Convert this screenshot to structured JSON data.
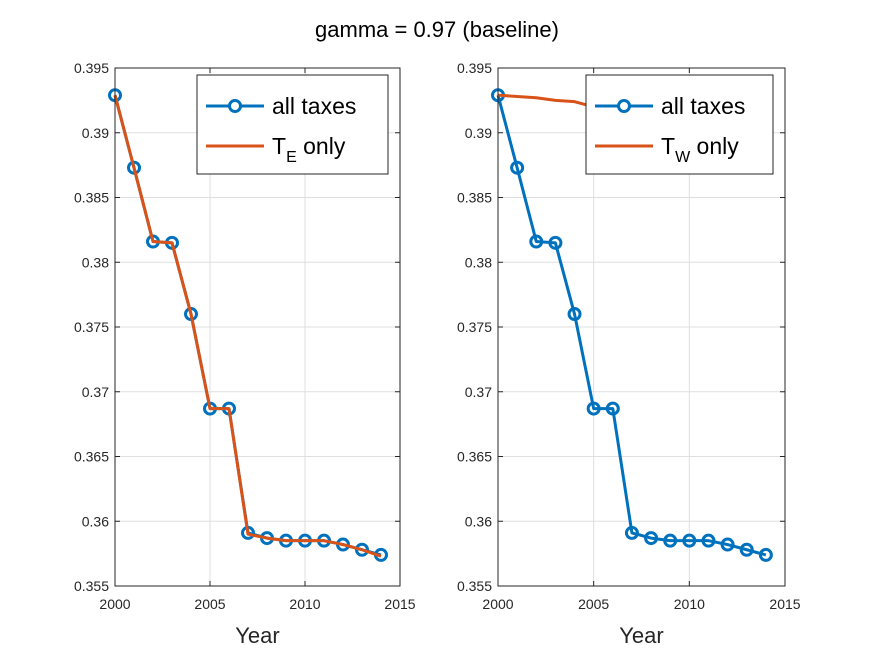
{
  "figure": {
    "title": "gamma = 0.97 (baseline)"
  },
  "colors": {
    "blue": "#0072BD",
    "orange": "#D95319",
    "grid": "#dfdfdf",
    "axis": "#262626"
  },
  "chart_data": [
    {
      "type": "line",
      "xlabel": "Year",
      "ylabel": "",
      "xlim": [
        2000,
        2015
      ],
      "ylim": [
        0.355,
        0.395
      ],
      "xticks": [
        2000,
        2005,
        2010,
        2015
      ],
      "xtick_labels": [
        "2000",
        "2005",
        "2010",
        "2015"
      ],
      "yticks": [
        0.355,
        0.36,
        0.365,
        0.37,
        0.375,
        0.38,
        0.385,
        0.39,
        0.395
      ],
      "ytick_labels": [
        "0.355",
        "0.36",
        "0.365",
        "0.37",
        "0.375",
        "0.38",
        "0.385",
        "0.39",
        "0.395"
      ],
      "grid": true,
      "legend_position": "top-right",
      "x": [
        2000,
        2001,
        2002,
        2003,
        2004,
        2005,
        2006,
        2007,
        2008,
        2009,
        2010,
        2011,
        2012,
        2013,
        2014
      ],
      "series": [
        {
          "name": "all taxes",
          "label_main": "all taxes",
          "label_sub": "",
          "label_after": "",
          "color": "blue",
          "marker": "circle",
          "values": [
            0.3929,
            0.3873,
            0.3816,
            0.3815,
            0.376,
            0.3687,
            0.3687,
            0.3591,
            0.3587,
            0.3585,
            0.3585,
            0.3585,
            0.3582,
            0.3578,
            0.3574
          ]
        },
        {
          "name": "T_E only",
          "label_main": "T",
          "label_sub": "E",
          "label_after": " only",
          "color": "orange",
          "marker": "none",
          "values": [
            0.3929,
            0.3873,
            0.3816,
            0.3815,
            0.376,
            0.3687,
            0.3687,
            0.359,
            0.3587,
            0.3585,
            0.3585,
            0.3585,
            0.3582,
            0.3578,
            0.3573
          ]
        }
      ]
    },
    {
      "type": "line",
      "xlabel": "Year",
      "ylabel": "",
      "xlim": [
        2000,
        2015
      ],
      "ylim": [
        0.355,
        0.395
      ],
      "xticks": [
        2000,
        2005,
        2010,
        2015
      ],
      "xtick_labels": [
        "2000",
        "2005",
        "2010",
        "2015"
      ],
      "yticks": [
        0.355,
        0.36,
        0.365,
        0.37,
        0.375,
        0.38,
        0.385,
        0.39,
        0.395
      ],
      "ytick_labels": [
        "0.355",
        "0.36",
        "0.365",
        "0.37",
        "0.375",
        "0.38",
        "0.385",
        "0.39",
        "0.395"
      ],
      "grid": true,
      "legend_position": "top-right",
      "x": [
        2000,
        2001,
        2002,
        2003,
        2004,
        2005,
        2006,
        2007,
        2008,
        2009,
        2010,
        2011,
        2012,
        2013,
        2014
      ],
      "series": [
        {
          "name": "all taxes",
          "label_main": "all taxes",
          "label_sub": "",
          "label_after": "",
          "color": "blue",
          "marker": "circle",
          "values": [
            0.3929,
            0.3873,
            0.3816,
            0.3815,
            0.376,
            0.3687,
            0.3687,
            0.3591,
            0.3587,
            0.3585,
            0.3585,
            0.3585,
            0.3582,
            0.3578,
            0.3574
          ]
        },
        {
          "name": "T_W only",
          "label_main": "T",
          "label_sub": "W",
          "label_after": " only",
          "color": "orange",
          "marker": "none",
          "values": [
            0.3929,
            0.3928,
            0.3927,
            0.3925,
            0.3924,
            0.392,
            0.3918,
            0.3916,
            0.3915,
            0.3914,
            0.3913,
            0.3912,
            0.3911,
            0.391,
            0.3909
          ]
        }
      ]
    }
  ]
}
